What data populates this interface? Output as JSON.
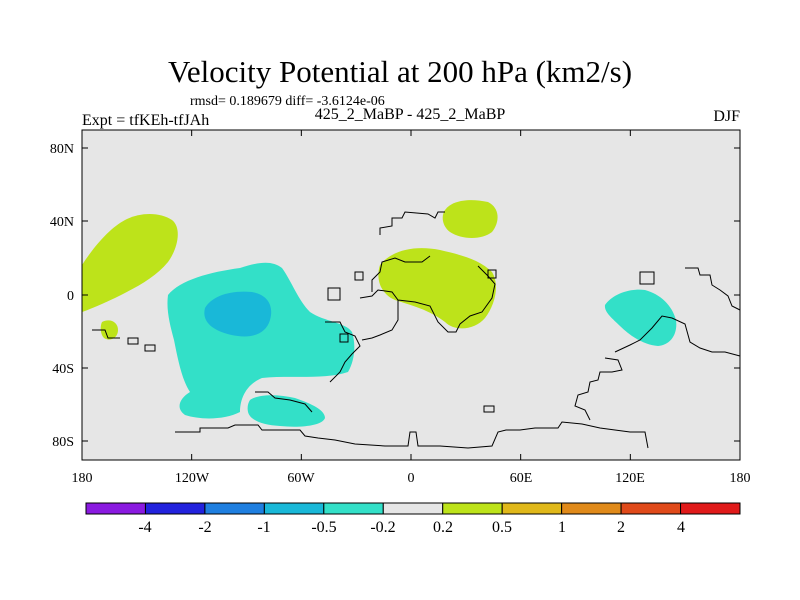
{
  "title": "Velocity Potential at 200 hPa (km2/s)",
  "stats": "rmsd= 0.189679 diff= -3.6124e-06",
  "left_label": "Expt = tfKEh-tfJAh",
  "center_label": "425_2_MaBP - 425_2_MaBP",
  "right_label": "DJF",
  "lon_ticks": [
    "180",
    "120W",
    "60W",
    "0",
    "60E",
    "120E",
    "180"
  ],
  "lat_ticks": [
    "80N",
    "40N",
    "0",
    "40S",
    "80S"
  ],
  "colorbar": {
    "labels": [
      "-4",
      "-2",
      "-1",
      "-0.5",
      "-0.2",
      "0.2",
      "0.5",
      "1",
      "2",
      "4"
    ],
    "colors": [
      "#8a1ae0",
      "#2222dd",
      "#1f7fe0",
      "#19b8d8",
      "#33e0c8",
      "#e6e6e6",
      "#bde31a",
      "#e0b81a",
      "#e08a1a",
      "#e04a1a",
      "#e01a1a"
    ]
  },
  "map_colors": {
    "background": "#e6e6e6",
    "pos_weak": "#bde31a",
    "neg_weak": "#33e0c8",
    "neg_mid": "#19b8d8"
  }
}
